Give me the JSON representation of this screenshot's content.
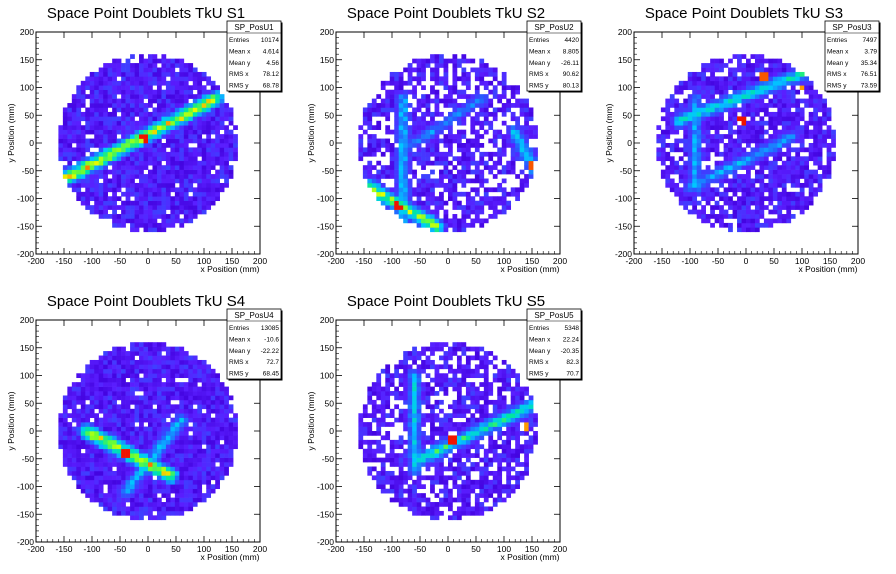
{
  "chart_data": [
    {
      "type": "heatmap",
      "title": "Space Point Doublets TkU S1",
      "xlabel": "x Position (mm)",
      "ylabel": "y Position (mm)",
      "xlim": [
        -200,
        200
      ],
      "ylim": [
        -200,
        200
      ],
      "xticks": [
        -200,
        -150,
        -100,
        -50,
        0,
        50,
        100,
        150,
        200
      ],
      "yticks": [
        -200,
        -150,
        -100,
        -50,
        0,
        50,
        100,
        150,
        200
      ],
      "disk_radius": 160,
      "stats": {
        "name": "SP_PosU1",
        "rows": [
          {
            "label": "Entries",
            "value": "10174"
          },
          {
            "label": "Mean x",
            "value": "4.614"
          },
          {
            "label": "Mean y",
            "value": "4.56"
          },
          {
            "label": "RMS x",
            "value": "78.12"
          },
          {
            "label": "RMS y",
            "value": "68.78"
          }
        ]
      },
      "bands": [
        {
          "x1": -150,
          "y1": -65,
          "x2": 120,
          "y2": 80,
          "peak": 1.0
        }
      ],
      "hotspots": [
        {
          "x": -5,
          "y": 10,
          "value": 1.0
        }
      ]
    },
    {
      "type": "heatmap",
      "title": "Space Point Doublets TkU S2",
      "xlabel": "x Position (mm)",
      "ylabel": "y Position (mm)",
      "xlim": [
        -200,
        200
      ],
      "ylim": [
        -200,
        200
      ],
      "xticks": [
        -200,
        -150,
        -100,
        -50,
        0,
        50,
        100,
        150,
        200
      ],
      "yticks": [
        -200,
        -150,
        -100,
        -50,
        0,
        50,
        100,
        150,
        200
      ],
      "disk_radius": 160,
      "stats": {
        "name": "SP_PosU2",
        "rows": [
          {
            "label": "Entries",
            "value": "4420"
          },
          {
            "label": "Mean x",
            "value": "8.805"
          },
          {
            "label": "Mean y",
            "value": "-26.11"
          },
          {
            "label": "RMS x",
            "value": "90.62"
          },
          {
            "label": "RMS y",
            "value": "80.13"
          }
        ]
      },
      "bands": [
        {
          "x1": -80,
          "y1": 80,
          "x2": -80,
          "y2": -150,
          "peak": 0.55
        },
        {
          "x1": -140,
          "y1": -80,
          "x2": -20,
          "y2": -150,
          "peak": 0.9
        },
        {
          "x1": -75,
          "y1": -10,
          "x2": 60,
          "y2": 80,
          "peak": 0.45
        },
        {
          "x1": 120,
          "y1": 20,
          "x2": 160,
          "y2": -60,
          "peak": 0.6
        }
      ],
      "hotspots": [
        {
          "x": -90,
          "y": -115,
          "value": 1.0
        },
        {
          "x": 150,
          "y": -40,
          "value": 0.95
        }
      ]
    },
    {
      "type": "heatmap",
      "title": "Space Point Doublets TkU S3",
      "xlabel": "x Position (mm)",
      "ylabel": "y Position (mm)",
      "xlim": [
        -200,
        200
      ],
      "ylim": [
        -200,
        200
      ],
      "xticks": [
        -200,
        -150,
        -100,
        -50,
        0,
        50,
        100,
        150,
        200
      ],
      "yticks": [
        -200,
        -150,
        -100,
        -50,
        0,
        50,
        100,
        150,
        200
      ],
      "disk_radius": 160,
      "stats": {
        "name": "SP_PosU3",
        "rows": [
          {
            "label": "Entries",
            "value": "7497"
          },
          {
            "label": "Mean x",
            "value": "3.79"
          },
          {
            "label": "Mean y",
            "value": "35.34"
          },
          {
            "label": "RMS x",
            "value": "76.51"
          },
          {
            "label": "RMS y",
            "value": "73.59"
          }
        ]
      },
      "bands": [
        {
          "x1": -120,
          "y1": 40,
          "x2": 140,
          "y2": 140,
          "peak": 0.65
        },
        {
          "x1": -90,
          "y1": 80,
          "x2": -90,
          "y2": -80,
          "peak": 0.5
        },
        {
          "x1": -100,
          "y1": -80,
          "x2": 80,
          "y2": 10,
          "peak": 0.5
        }
      ],
      "hotspots": [
        {
          "x": -10,
          "y": 40,
          "value": 1.0
        },
        {
          "x": 30,
          "y": 120,
          "value": 0.95
        },
        {
          "x": 95,
          "y": 100,
          "value": 0.9
        }
      ]
    },
    {
      "type": "heatmap",
      "title": "Space Point Doublets TkU S4",
      "xlabel": "x Position (mm)",
      "ylabel": "y Position (mm)",
      "xlim": [
        -200,
        200
      ],
      "ylim": [
        -200,
        200
      ],
      "xticks": [
        -200,
        -150,
        -100,
        -50,
        0,
        50,
        100,
        150,
        200
      ],
      "yticks": [
        -200,
        -150,
        -100,
        -50,
        0,
        50,
        100,
        150,
        200
      ],
      "disk_radius": 160,
      "stats": {
        "name": "SP_PosU4",
        "rows": [
          {
            "label": "Entries",
            "value": "13085"
          },
          {
            "label": "Mean x",
            "value": "-10.6"
          },
          {
            "label": "Mean y",
            "value": "-22.22"
          },
          {
            "label": "RMS x",
            "value": "72.7"
          },
          {
            "label": "RMS y",
            "value": "68.45"
          }
        ]
      },
      "bands": [
        {
          "x1": -110,
          "y1": 0,
          "x2": 40,
          "y2": -80,
          "peak": 1.0
        },
        {
          "x1": -40,
          "y1": -110,
          "x2": 60,
          "y2": 20,
          "peak": 0.55
        }
      ],
      "hotspots": [
        {
          "x": -40,
          "y": -40,
          "value": 1.0
        }
      ]
    },
    {
      "type": "heatmap",
      "title": "Space Point Doublets TkU S5",
      "xlabel": "x Position (mm)",
      "ylabel": "y Position (mm)",
      "xlim": [
        -200,
        200
      ],
      "ylim": [
        -200,
        200
      ],
      "xticks": [
        -200,
        -150,
        -100,
        -50,
        0,
        50,
        100,
        150,
        200
      ],
      "yticks": [
        -200,
        -150,
        -100,
        -50,
        0,
        50,
        100,
        150,
        200
      ],
      "disk_radius": 160,
      "stats": {
        "name": "SP_PosU5",
        "rows": [
          {
            "label": "Entries",
            "value": "5348"
          },
          {
            "label": "Mean x",
            "value": "22.24"
          },
          {
            "label": "Mean y",
            "value": "-20.35"
          },
          {
            "label": "RMS x",
            "value": "82.3"
          },
          {
            "label": "RMS y",
            "value": "70.7"
          }
        ]
      },
      "bands": [
        {
          "x1": -60,
          "y1": 100,
          "x2": -60,
          "y2": -70,
          "peak": 0.55
        },
        {
          "x1": -50,
          "y1": -50,
          "x2": 160,
          "y2": 50,
          "peak": 0.7
        }
      ],
      "hotspots": [
        {
          "x": 10,
          "y": -15,
          "value": 1.0
        },
        {
          "x": 140,
          "y": 10,
          "value": 0.9
        }
      ]
    }
  ]
}
